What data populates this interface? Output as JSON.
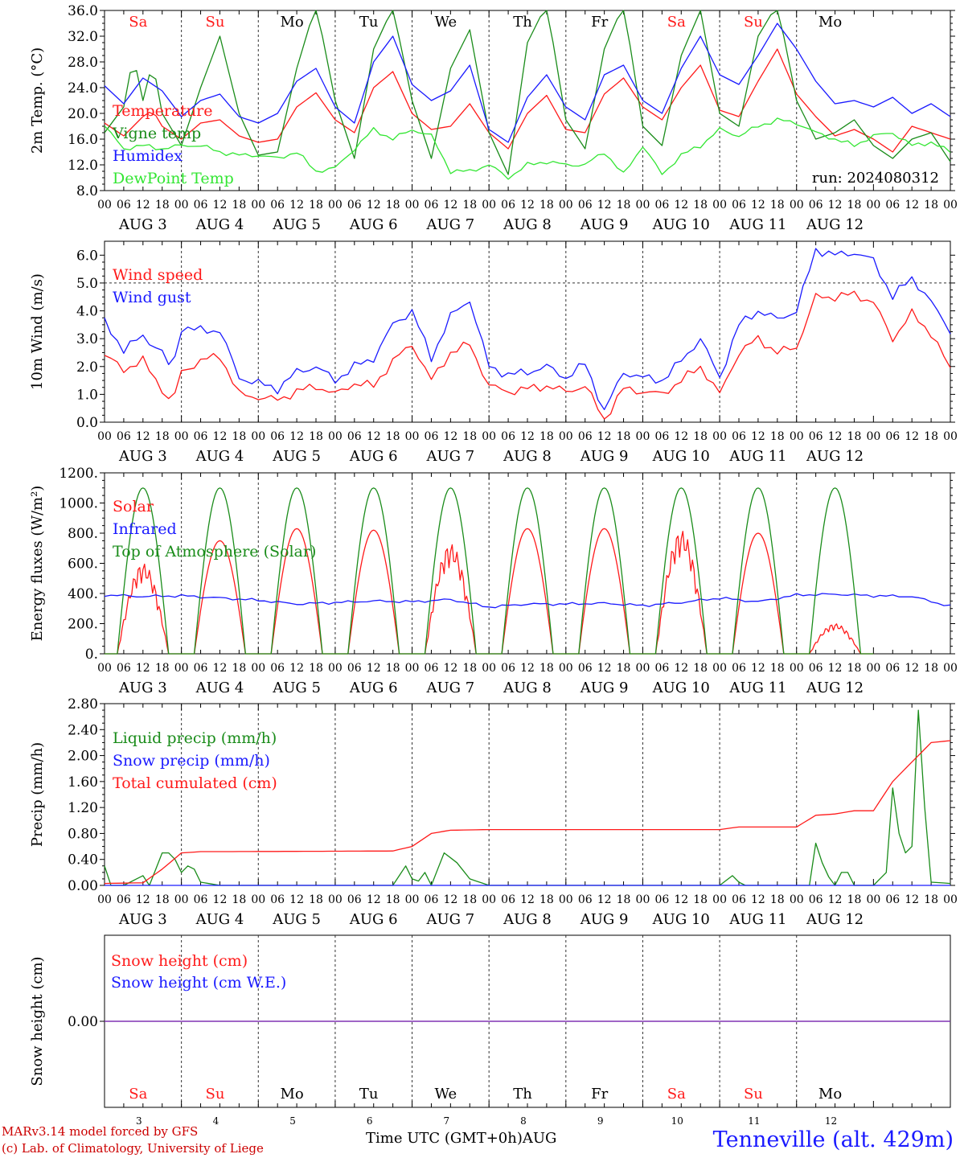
{
  "station": "Tenneville (alt. 429m)",
  "footer": {
    "model": "MARv3.14 model forced by GFS",
    "credit": "(c) Lab. of Climatology, University of Liege",
    "time_axis": "Time UTC (GMT+0h)",
    "month": "AUG"
  },
  "colors": {
    "red": "#ff1a1a",
    "green": "#1a8c1a",
    "blue": "#1a1aff",
    "lightgreen": "#33e633",
    "purple": "#8033b3"
  },
  "chart_data": [
    {
      "type": "line",
      "ylabel": "2m Temp. (°C)",
      "ylim": [
        8,
        36
      ],
      "yticks": [
        "8.0",
        "12.0",
        "16.0",
        "20.0",
        "24.0",
        "28.0",
        "32.0",
        "36.0"
      ],
      "annotation": "run: 2024080312",
      "day_names": [
        "Sa",
        "Su",
        "Mo",
        "Tu",
        "We",
        "Th",
        "Fr",
        "Sa",
        "Su",
        "Mo"
      ],
      "series": [
        {
          "name": "Temperature",
          "color": "red",
          "x": [
            0,
            6,
            12,
            15,
            18,
            24,
            30,
            36,
            42,
            48,
            54,
            60,
            66,
            72,
            78,
            84,
            90,
            96,
            102,
            108,
            114,
            120,
            126,
            132,
            138,
            144,
            150,
            156,
            162,
            168,
            174,
            180,
            186,
            192,
            198,
            204,
            210,
            216,
            222,
            228,
            234,
            240,
            246,
            252,
            258,
            264
          ],
          "values": [
            18.5,
            16.5,
            19.5,
            20.5,
            18.0,
            16.0,
            18.5,
            19.0,
            16.5,
            15.5,
            16.0,
            21.0,
            23.2,
            19.0,
            17.0,
            24.0,
            26.5,
            20.0,
            17.5,
            18.0,
            21.5,
            17.0,
            14.5,
            20.0,
            22.8,
            17.5,
            17.0,
            23.0,
            25.5,
            21.0,
            19.0,
            24.0,
            27.5,
            20.5,
            19.5,
            25.0,
            30.0,
            23.0,
            19.5,
            16.5,
            17.5,
            16.0,
            14.0,
            18.0,
            17.0,
            16.0
          ]
        },
        {
          "name": "Vigne temp",
          "color": "green",
          "x": [
            0,
            6,
            9,
            12,
            15,
            18,
            24,
            30,
            36,
            42,
            48,
            54,
            60,
            66,
            72,
            78,
            84,
            90,
            96,
            102,
            108,
            114,
            120,
            126,
            132,
            138,
            144,
            150,
            156,
            162,
            168,
            174,
            180,
            186,
            192,
            198,
            204,
            210,
            216,
            222,
            228,
            234,
            240,
            246,
            252,
            258,
            264
          ],
          "values": [
            17.0,
            21.0,
            29.0,
            22.0,
            28.0,
            20.0,
            15.0,
            24.0,
            32.0,
            20.0,
            13.5,
            14.0,
            27.0,
            37.0,
            22.0,
            13.0,
            30.0,
            36.5,
            22.0,
            13.0,
            27.0,
            33.0,
            17.0,
            10.5,
            31.0,
            37.0,
            19.0,
            14.5,
            30.0,
            37.0,
            18.0,
            15.0,
            29.0,
            36.0,
            20.0,
            18.0,
            32.0,
            37.0,
            22.0,
            16.0,
            17.0,
            19.0,
            15.0,
            13.0,
            16.0,
            17.0,
            12.5
          ]
        },
        {
          "name": "Humidex",
          "color": "blue",
          "x": [
            0,
            6,
            12,
            18,
            24,
            30,
            36,
            42,
            48,
            54,
            60,
            66,
            72,
            78,
            84,
            90,
            96,
            102,
            108,
            114,
            120,
            126,
            132,
            138,
            144,
            150,
            156,
            162,
            168,
            174,
            180,
            186,
            192,
            198,
            204,
            210,
            216,
            222,
            228,
            234,
            240,
            246,
            252,
            258,
            264
          ],
          "values": [
            24.3,
            21.5,
            25.5,
            23.5,
            19.5,
            22.0,
            23.0,
            19.5,
            18.5,
            20.0,
            25.0,
            27.0,
            21.0,
            18.5,
            28.0,
            32.0,
            24.5,
            22.0,
            23.5,
            27.5,
            17.5,
            15.5,
            22.5,
            26.0,
            21.0,
            19.0,
            26.0,
            27.5,
            22.0,
            20.0,
            27.0,
            32.0,
            26.0,
            24.5,
            29.0,
            34.0,
            30.0,
            25.0,
            21.5,
            22.0,
            21.0,
            22.5,
            20.0,
            21.5,
            19.5
          ]
        },
        {
          "name": "DewPoint Temp",
          "color": "lightgreen",
          "x": [
            0,
            6,
            12,
            18,
            24,
            30,
            36,
            42,
            48,
            54,
            60,
            66,
            72,
            78,
            84,
            90,
            96,
            102,
            108,
            114,
            120,
            126,
            132,
            138,
            144,
            150,
            156,
            162,
            168,
            174,
            180,
            186,
            192,
            198,
            204,
            210,
            216,
            222,
            228,
            234,
            240,
            246,
            252,
            258,
            264
          ],
          "values": [
            18.0,
            14.5,
            15.0,
            14.5,
            15.0,
            15.0,
            14.0,
            13.5,
            13.5,
            13.0,
            14.0,
            11.0,
            11.5,
            14.5,
            17.5,
            16.0,
            17.5,
            16.5,
            11.0,
            11.0,
            12.0,
            10.0,
            12.0,
            12.5,
            12.0,
            12.0,
            14.0,
            10.5,
            15.0,
            10.5,
            13.5,
            15.0,
            17.5,
            16.5,
            18.0,
            19.0,
            18.5,
            17.0,
            16.0,
            15.0,
            16.5,
            17.0,
            15.0,
            15.5,
            14.0
          ]
        }
      ]
    },
    {
      "type": "line",
      "ylabel": "10m Wind (m/s)",
      "ylim": [
        0,
        6.5
      ],
      "yticks": [
        "0.0",
        "1.0",
        "2.0",
        "3.0",
        "4.0",
        "5.0",
        "6.0"
      ],
      "dashed_level": 5,
      "series": [
        {
          "name": "Wind speed",
          "color": "red",
          "x": [
            0,
            6,
            12,
            18,
            21,
            24,
            30,
            36,
            42,
            48,
            54,
            60,
            66,
            72,
            78,
            84,
            90,
            96,
            102,
            108,
            114,
            120,
            126,
            132,
            138,
            144,
            150,
            156,
            162,
            168,
            174,
            180,
            186,
            192,
            198,
            204,
            210,
            216,
            222,
            228,
            234,
            240,
            246,
            252,
            258,
            264
          ],
          "values": [
            2.4,
            1.9,
            2.2,
            1.2,
            0.6,
            1.8,
            2.2,
            2.4,
            1.0,
            0.9,
            0.8,
            1.1,
            1.3,
            1.0,
            1.4,
            1.3,
            2.2,
            2.8,
            1.5,
            2.5,
            2.8,
            1.3,
            1.1,
            1.2,
            1.3,
            1.1,
            1.3,
            0.1,
            1.2,
            1.1,
            1.0,
            1.5,
            2.0,
            1.0,
            2.5,
            3.0,
            2.5,
            2.7,
            4.5,
            4.5,
            4.6,
            4.3,
            3.0,
            3.9,
            3.2,
            1.9
          ]
        },
        {
          "name": "Wind gust",
          "color": "blue",
          "x": [
            0,
            6,
            12,
            18,
            21,
            24,
            30,
            36,
            42,
            48,
            54,
            60,
            66,
            72,
            78,
            84,
            90,
            96,
            102,
            108,
            114,
            120,
            126,
            132,
            138,
            144,
            150,
            156,
            162,
            168,
            174,
            180,
            186,
            192,
            198,
            204,
            210,
            216,
            222,
            228,
            234,
            240,
            246,
            252,
            258,
            264
          ],
          "values": [
            3.6,
            2.6,
            3.1,
            2.5,
            1.8,
            3.4,
            3.3,
            3.3,
            1.6,
            1.4,
            1.2,
            1.8,
            2.0,
            1.5,
            2.0,
            2.3,
            3.5,
            4.0,
            2.3,
            3.8,
            4.4,
            2.0,
            1.7,
            1.8,
            2.0,
            1.6,
            2.1,
            0.4,
            1.8,
            1.6,
            1.5,
            2.2,
            3.0,
            1.6,
            3.5,
            4.0,
            3.7,
            4.0,
            6.2,
            6.0,
            6.1,
            5.8,
            4.5,
            5.2,
            4.3,
            3.3
          ]
        }
      ]
    },
    {
      "type": "line",
      "ylabel": "Energy fluxes (W/m²)",
      "ylim": [
        0,
        1200
      ],
      "yticks": [
        "0.",
        "200.",
        "400.",
        "600.",
        "800.",
        "1000.",
        "1200."
      ],
      "series": [
        {
          "name": "Solar",
          "color": "red",
          "peaks": [
            600,
            750,
            830,
            820,
            730,
            830,
            830,
            820,
            800,
            200
          ]
        },
        {
          "name": "Infrared",
          "color": "blue",
          "x": [
            0,
            12,
            24,
            36,
            48,
            60,
            72,
            84,
            96,
            108,
            120,
            132,
            144,
            156,
            168,
            180,
            192,
            204,
            216,
            228,
            240,
            252,
            264
          ],
          "values": [
            390,
            380,
            385,
            370,
            355,
            330,
            340,
            350,
            345,
            360,
            310,
            330,
            330,
            335,
            320,
            340,
            370,
            345,
            390,
            395,
            385,
            380,
            315
          ]
        },
        {
          "name": "Top of Atmosphere (Solar)",
          "color": "green",
          "peak": 1100
        }
      ]
    },
    {
      "type": "line",
      "ylabel": "Precip (mm/h)",
      "ylim": [
        0,
        2.8
      ],
      "yticks": [
        "0.00",
        "0.40",
        "0.80",
        "1.20",
        "1.60",
        "2.00",
        "2.40",
        "2.80"
      ],
      "series": [
        {
          "name": "Liquid precip (mm/h)",
          "color": "green",
          "x": [
            0,
            2,
            6,
            12,
            14,
            18,
            21,
            24,
            27,
            30,
            36,
            90,
            94,
            97,
            100,
            102,
            106,
            110,
            114,
            120,
            126,
            192,
            196,
            199,
            220,
            222,
            225,
            228,
            231,
            234,
            240,
            244,
            246,
            248,
            250,
            252,
            254,
            256,
            258,
            264
          ],
          "values": [
            0.3,
            0.0,
            0.0,
            0.15,
            0.0,
            0.5,
            0.5,
            0.2,
            0.35,
            0.05,
            0.0,
            0.0,
            0.3,
            0.0,
            0.2,
            0.0,
            0.5,
            0.35,
            0.1,
            0.0,
            0.0,
            0.0,
            0.15,
            0.0,
            0.0,
            0.65,
            0.2,
            0.0,
            0.3,
            0.0,
            0.0,
            0.2,
            1.5,
            0.8,
            0.5,
            0.6,
            2.7,
            1.2,
            0.05,
            0.03
          ]
        },
        {
          "name": "Snow precip (mm/h)",
          "color": "blue",
          "x": [
            0,
            264
          ],
          "values": [
            0,
            0
          ]
        },
        {
          "name": "Total cumulated (cm)",
          "color": "red",
          "x": [
            0,
            12,
            18,
            24,
            30,
            36,
            90,
            96,
            102,
            108,
            120,
            192,
            198,
            204,
            216,
            222,
            228,
            234,
            240,
            246,
            252,
            258,
            264
          ],
          "values": [
            0.03,
            0.04,
            0.25,
            0.5,
            0.52,
            0.52,
            0.53,
            0.6,
            0.8,
            0.85,
            0.86,
            0.86,
            0.9,
            0.9,
            0.9,
            1.08,
            1.1,
            1.15,
            1.15,
            1.6,
            1.9,
            2.2,
            2.23
          ]
        }
      ]
    },
    {
      "type": "line",
      "ylabel": "Snow height (cm)",
      "yticks": [
        "0.00"
      ],
      "day_names": [
        "Sa",
        "Su",
        "Mo",
        "Tu",
        "We",
        "Th",
        "Fr",
        "Sa",
        "Su",
        "Mo"
      ],
      "day_numbers": [
        "3",
        "4",
        "5",
        "6",
        "7",
        "8",
        "9",
        "10",
        "11",
        "12"
      ],
      "series": [
        {
          "name": "Snow height (cm)",
          "color": "red",
          "x": [
            0,
            264
          ],
          "values": [
            0,
            0
          ]
        },
        {
          "name": "Snow height (cm W.E.)",
          "color": "blue",
          "x": [
            0,
            264
          ],
          "values": [
            0,
            0
          ]
        }
      ]
    }
  ],
  "x_axis": {
    "hour_labels": [
      "00",
      "06",
      "12",
      "18"
    ],
    "day_labels": [
      "AUG  3",
      "AUG  4",
      "AUG  5",
      "AUG  6",
      "AUG  7",
      "AUG  8",
      "AUG  9",
      "AUG 10",
      "AUG 11",
      "AUG 12"
    ],
    "last_hour_label": "00"
  }
}
